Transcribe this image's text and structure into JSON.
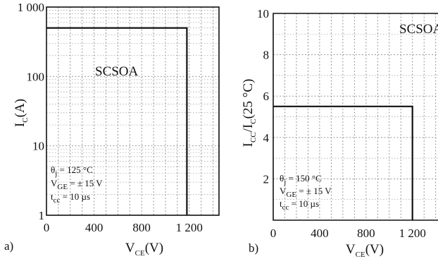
{
  "chart_data": [
    {
      "type": "line",
      "panel_label": "a)",
      "region_label": "SCSOA",
      "ylabel": "I_C(A)",
      "xlabel": "V_CE(V)",
      "yscale": "log",
      "ylim": [
        1,
        1000
      ],
      "xlim": [
        0,
        1450
      ],
      "x_ticks": [
        0,
        400,
        800,
        1200
      ],
      "x_tick_labels": [
        "0",
        "400",
        "800",
        "1 200"
      ],
      "y_ticks": [
        1,
        10,
        100,
        1000
      ],
      "y_tick_labels": [
        "1",
        "10",
        "100",
        "1 000"
      ],
      "grid": true,
      "series": [
        {
          "x": [
            0,
            1180,
            1180
          ],
          "y": [
            500,
            500,
            1
          ]
        }
      ],
      "conditions": [
        {
          "sym": "θ",
          "sub": "j",
          "rest": " = 125 °C"
        },
        {
          "sym": "V",
          "sub": "GE",
          "rest": " = ± 15 V"
        },
        {
          "sym": "t",
          "sub": "cc",
          "rest": " = 10 µs"
        }
      ]
    },
    {
      "type": "line",
      "panel_label": "b)",
      "region_label": "SCSOA",
      "ylabel": "I_CC/I_C(25 °C)",
      "xlabel": "V_CE(V)",
      "yscale": "linear",
      "ylim": [
        0,
        10
      ],
      "xlim": [
        0,
        1420
      ],
      "x_ticks": [
        0,
        400,
        800,
        1200
      ],
      "x_tick_labels": [
        "0",
        "400",
        "800",
        "1 200"
      ],
      "y_ticks": [
        2,
        4,
        6,
        8,
        10
      ],
      "y_tick_labels": [
        "2",
        "4",
        "6",
        "8",
        "10"
      ],
      "grid": true,
      "series": [
        {
          "x": [
            0,
            1200,
            1200
          ],
          "y": [
            5.5,
            5.5,
            0
          ]
        }
      ],
      "conditions": [
        {
          "sym": "θ",
          "sub": "j",
          "rest": " = 150 °C"
        },
        {
          "sym": "V",
          "sub": "GE",
          "rest": " = ± 15 V"
        },
        {
          "sym": "t",
          "sub": "cc",
          "rest": " = 10 µs"
        }
      ]
    }
  ]
}
